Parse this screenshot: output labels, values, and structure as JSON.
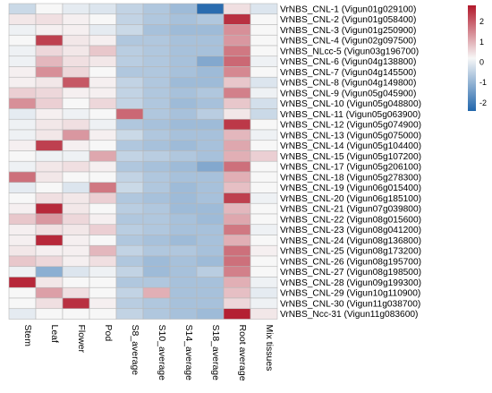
{
  "chart_data": {
    "type": "heatmap",
    "title": "",
    "xlabel": "",
    "ylabel": "",
    "columns": [
      "Stem",
      "Leaf",
      "Flower",
      "Pod",
      "S8_average",
      "S10_average",
      "S14_average",
      "S18_average",
      "Root average",
      "Mix tissues"
    ],
    "rows": [
      "VrNBS_CNL-1 (Vigun01g029100)",
      "VrNBS_CNL-2 (Vigun01g058400)",
      "VrNBS_CNL-3 (Vigun01g250900)",
      "VrNBS_CNL-4 (Vigun02g097500)",
      "VrNBS_NLcc-5 (Vigun03g196700)",
      "VrNBS_CNL-6 (Vigun04g138800)",
      "VrNBS_CNL-7 (Vigun04g145500)",
      "VrNBS_CNL-8 (Vigun04g149800)",
      "VrNBS_CNL-9 (Vigun05g045900)",
      "VrNBS_CNL-10 (Vigun05g048800)",
      "VrNBS_CNL-11 (Vigun05g063900)",
      "VrNBS_CNL-12 (Vigun05g074900)",
      "VrNBS_CNL-13 (Vigun05g075000)",
      "VrNBS_CNL-14 (Vigun05g104400)",
      "VrNBS_CNL-15 (Vigun05g107200)",
      "VrNBS_CNL-17 (Vigun05g206100)",
      "VrNBS_CNL-18 (Vigun05g278300)",
      "VrNBS_CNL-19 (Vigun06g015400)",
      "VrNBS_CNL-20 (Vigun06g185100)",
      "VrNBS_CNL-21 (Vigun07g039800)",
      "VrNBS_CNL-22 (Vigun08g015600)",
      "VrNBS_CNL-23 (Vigun08g041200)",
      "VrNBS_CNL-24 (Vigun08g136800)",
      "VrNBS_CNL-25 (Vigun08g173200)",
      "VrNBS_CNL-26 (Vigun08g195700)",
      "VrNBS_CNL-27 (Vigun08g198500)",
      "VrNBS_CNL-28 (Vigun09g199300)",
      "VrNBS_CNL-29 (Vigun10g110900)",
      "VrNBS_CNL-30 (Vigun11g038700)",
      "VrNBS_Ncc-31 (Vigun11g083600)"
    ],
    "values": [
      [
        -0.5,
        0.0,
        -0.2,
        -0.3,
        -0.6,
        -0.8,
        -1.0,
        -2.3,
        0.3,
        -0.3
      ],
      [
        0.2,
        0.3,
        0.1,
        0.0,
        -0.6,
        -0.8,
        -0.9,
        -0.8,
        2.5,
        0.0
      ],
      [
        -0.1,
        0.1,
        0.1,
        -0.2,
        -0.5,
        -0.9,
        -1.0,
        -1.0,
        1.3,
        0.0
      ],
      [
        0.0,
        2.3,
        0.2,
        0.1,
        -0.8,
        -0.8,
        -0.9,
        -0.9,
        1.2,
        0.0
      ],
      [
        -0.1,
        0.4,
        0.2,
        0.6,
        -0.7,
        -0.8,
        -0.9,
        -0.9,
        1.6,
        0.0
      ],
      [
        -0.1,
        0.8,
        0.3,
        0.2,
        -0.7,
        -0.8,
        -0.9,
        -1.3,
        1.8,
        -0.1
      ],
      [
        0.1,
        1.3,
        0.4,
        0.0,
        -0.8,
        -0.8,
        -0.9,
        -1.0,
        1.4,
        0.0
      ],
      [
        0.1,
        0.2,
        2.0,
        0.1,
        -0.6,
        -0.8,
        -1.0,
        -1.0,
        0.6,
        -0.3
      ],
      [
        0.5,
        0.4,
        0.1,
        0.1,
        -0.6,
        -0.8,
        -0.9,
        -0.8,
        1.5,
        -0.1
      ],
      [
        1.3,
        0.5,
        0.0,
        0.4,
        -0.6,
        -0.8,
        -1.0,
        -0.9,
        0.6,
        -0.4
      ],
      [
        -0.2,
        0.1,
        -0.1,
        0.0,
        1.8,
        -0.8,
        -0.9,
        -0.7,
        0.2,
        -0.5
      ],
      [
        -0.1,
        0.2,
        0.3,
        -0.1,
        -0.8,
        -0.9,
        -1.0,
        -1.0,
        2.4,
        0.0
      ],
      [
        -0.1,
        0.2,
        1.2,
        0.1,
        -0.5,
        -0.8,
        -0.9,
        -0.9,
        0.8,
        -0.1
      ],
      [
        0.1,
        2.3,
        0.1,
        0.0,
        -0.8,
        -0.9,
        -1.0,
        -0.9,
        1.0,
        0.0
      ],
      [
        0.0,
        -0.1,
        -0.1,
        1.0,
        -0.6,
        -0.7,
        -0.8,
        -0.9,
        0.9,
        0.5
      ],
      [
        -0.1,
        0.2,
        0.3,
        0.1,
        -0.8,
        -0.9,
        -1.0,
        -1.3,
        1.7,
        0.0
      ],
      [
        1.7,
        0.2,
        0.0,
        0.0,
        -0.6,
        -0.8,
        -0.9,
        -0.9,
        0.9,
        0.0
      ],
      [
        -0.2,
        0.0,
        -0.3,
        1.6,
        -0.5,
        -0.8,
        -1.0,
        -0.9,
        0.7,
        0.0
      ],
      [
        0.0,
        0.3,
        0.2,
        0.5,
        -0.8,
        -0.9,
        -1.0,
        -0.9,
        2.3,
        -0.1
      ],
      [
        0.1,
        2.6,
        0.2,
        0.0,
        -0.7,
        -0.8,
        -1.0,
        -1.0,
        0.8,
        0.0
      ],
      [
        0.6,
        1.2,
        0.4,
        0.1,
        -0.8,
        -0.8,
        -0.9,
        -1.0,
        1.0,
        0.0
      ],
      [
        0.1,
        0.3,
        0.2,
        0.5,
        -0.7,
        -0.8,
        -0.9,
        -0.9,
        1.6,
        -0.1
      ],
      [
        0.1,
        2.6,
        0.1,
        0.0,
        -0.8,
        -0.9,
        -1.0,
        -0.9,
        0.9,
        0.0
      ],
      [
        0.2,
        0.1,
        0.1,
        0.8,
        -0.6,
        -0.8,
        -0.8,
        -0.9,
        1.7,
        0.1
      ],
      [
        0.6,
        0.4,
        0.1,
        0.3,
        -0.8,
        -1.0,
        -0.9,
        -1.0,
        1.7,
        0.0
      ],
      [
        -0.1,
        -1.2,
        -0.3,
        -0.1,
        -0.6,
        -1.0,
        -0.9,
        -0.7,
        1.5,
        0.0
      ],
      [
        2.6,
        0.2,
        0.0,
        0.0,
        -0.8,
        -0.8,
        -0.9,
        -0.9,
        0.9,
        -0.1
      ],
      [
        0.0,
        1.1,
        0.3,
        0.0,
        -0.6,
        0.9,
        -0.9,
        -0.9,
        0.7,
        -0.2
      ],
      [
        0.0,
        0.3,
        2.5,
        0.1,
        -0.7,
        -0.8,
        -0.9,
        -0.9,
        0.4,
        -0.1
      ],
      [
        -0.2,
        0.0,
        0.0,
        0.0,
        -0.6,
        -0.8,
        -0.9,
        -1.0,
        2.7,
        0.2
      ]
    ],
    "color_scale": {
      "min": -2.4,
      "max": 2.8,
      "ticks": [
        2,
        1,
        0,
        -1,
        -2
      ],
      "low_color": "#2166ac",
      "mid_color": "#f7f7f7",
      "high_color": "#b2182b"
    },
    "legend": "top-right"
  }
}
